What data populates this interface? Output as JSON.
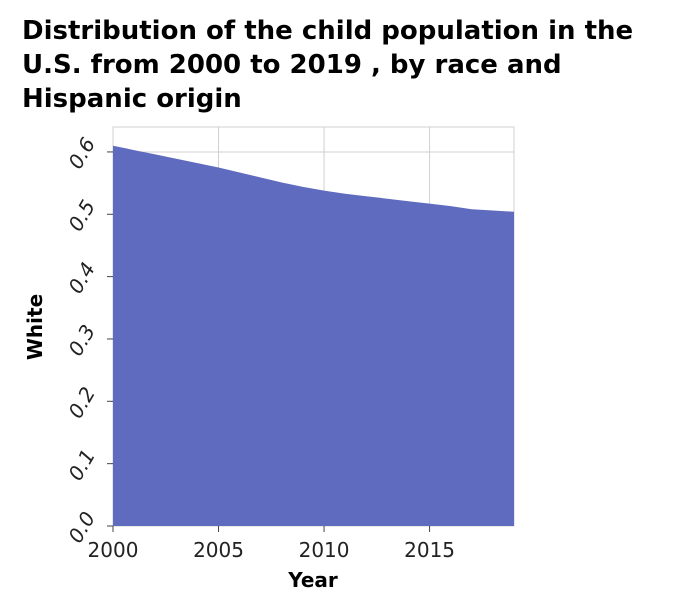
{
  "chart_data": {
    "type": "area",
    "title": "Distribution of the child population in the U.S. from 2000 to 2019 , by race and Hispanic origin",
    "xlabel": "Year",
    "ylabel": "White",
    "x": [
      2000,
      2001,
      2002,
      2003,
      2004,
      2005,
      2006,
      2007,
      2008,
      2009,
      2010,
      2011,
      2012,
      2013,
      2014,
      2015,
      2016,
      2017,
      2018,
      2019
    ],
    "series": [
      {
        "name": "White",
        "values": [
          0.61,
          0.603,
          0.596,
          0.589,
          0.582,
          0.575,
          0.567,
          0.559,
          0.551,
          0.544,
          0.538,
          0.533,
          0.529,
          0.525,
          0.521,
          0.517,
          0.513,
          0.508,
          0.506,
          0.504
        ]
      }
    ],
    "xlim": [
      2000,
      2019
    ],
    "ylim": [
      0,
      0.64
    ],
    "x_ticks": [
      2000,
      2005,
      2010,
      2015
    ],
    "x_tick_labels": [
      "2000",
      "2005",
      "2010",
      "2015"
    ],
    "y_ticks": [
      0,
      0.1,
      0.2,
      0.3,
      0.4,
      0.5,
      0.6
    ],
    "y_tick_labels": [
      "0.0",
      "0.1",
      "0.2",
      "0.3",
      "0.4",
      "0.5",
      "0.6"
    ],
    "grid": true,
    "fill_color": "#5f6bbf",
    "grid_color": "#d0d0d0"
  }
}
